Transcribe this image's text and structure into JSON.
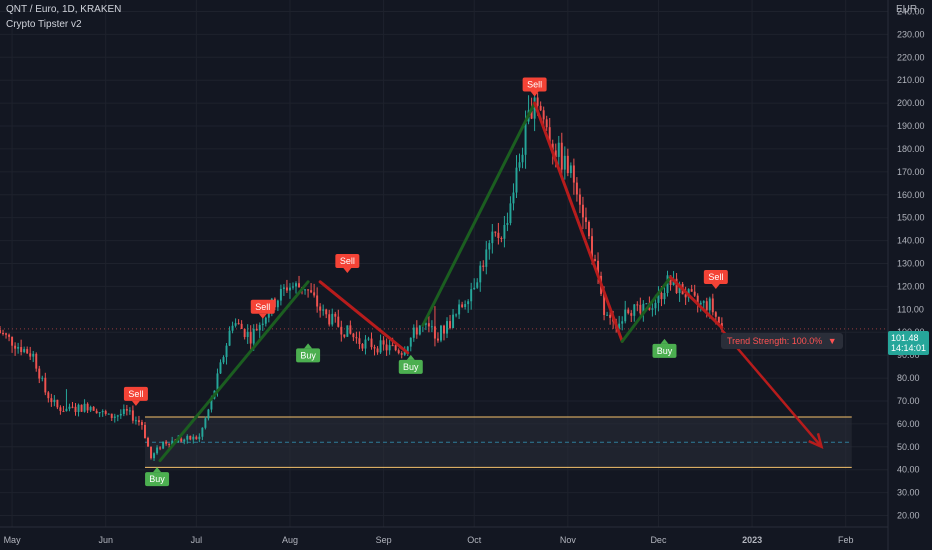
{
  "header": {
    "symbol": "QNT / Euro, 1D, KRAKEN",
    "indicator": "Crypto Tipster v2"
  },
  "price_scale": {
    "currency": "EUR",
    "last_price": "101.48",
    "countdown": "14:14:01"
  },
  "trend_strength": {
    "label": "Trend Strength: 100.0%",
    "arrow": "▼"
  },
  "colors": {
    "background": "#131722",
    "grid": "#1e222d",
    "text": "#b2b5be",
    "up": "#26a69a",
    "down": "#ef5350",
    "buy": "#4caf50",
    "sell": "#f44336",
    "trend_up": "#1b5e20",
    "trend_down": "#b71c1c",
    "zone_border": "#f5c26b",
    "zone_mid": "#2e7d9a"
  },
  "chart_data": {
    "type": "candlestick",
    "x_ticks": [
      "May",
      "Jun",
      "Jul",
      "Aug",
      "Sep",
      "Oct",
      "Nov",
      "Dec",
      "2023",
      "Feb"
    ],
    "y_ticks": [
      "20.00",
      "30.00",
      "40.00",
      "50.00",
      "60.00",
      "70.00",
      "80.00",
      "90.00",
      "100.00",
      "110.00",
      "120.00",
      "130.00",
      "140.00",
      "150.00",
      "160.00",
      "170.00",
      "180.00",
      "190.00",
      "200.00",
      "210.00",
      "220.00",
      "230.00",
      "240.00"
    ],
    "ylim": [
      15,
      245
    ],
    "xlim": [
      "2022-04-27",
      "2023-02-15"
    ],
    "close_path": [
      [
        "2022-04-26",
        101
      ],
      [
        "2022-05-03",
        94
      ],
      [
        "2022-05-08",
        90
      ],
      [
        "2022-05-12",
        74
      ],
      [
        "2022-05-16",
        67
      ],
      [
        "2022-05-20",
        66
      ],
      [
        "2022-05-27",
        68
      ],
      [
        "2022-06-02",
        63
      ],
      [
        "2022-06-08",
        65
      ],
      [
        "2022-06-13",
        60
      ],
      [
        "2022-06-16",
        45
      ],
      [
        "2022-06-20",
        52
      ],
      [
        "2022-06-26",
        53
      ],
      [
        "2022-07-02",
        54
      ],
      [
        "2022-07-06",
        70
      ],
      [
        "2022-07-13",
        105
      ],
      [
        "2022-07-19",
        98
      ],
      [
        "2022-07-25",
        110
      ],
      [
        "2022-07-31",
        120
      ],
      [
        "2022-08-06",
        120
      ],
      [
        "2022-08-12",
        108
      ],
      [
        "2022-08-18",
        102
      ],
      [
        "2022-08-24",
        96
      ],
      [
        "2022-08-30",
        94
      ],
      [
        "2022-09-07",
        92
      ],
      [
        "2022-09-13",
        103
      ],
      [
        "2022-09-19",
        99
      ],
      [
        "2022-09-25",
        107
      ],
      [
        "2022-10-01",
        122
      ],
      [
        "2022-10-07",
        140
      ],
      [
        "2022-10-11",
        145
      ],
      [
        "2022-10-16",
        175
      ],
      [
        "2022-10-21",
        205
      ],
      [
        "2022-10-26",
        185
      ],
      [
        "2022-10-30",
        175
      ],
      [
        "2022-11-04",
        165
      ],
      [
        "2022-11-09",
        135
      ],
      [
        "2022-11-13",
        108
      ],
      [
        "2022-11-17",
        100
      ],
      [
        "2022-11-20",
        112
      ],
      [
        "2022-11-25",
        108
      ],
      [
        "2022-12-01",
        115
      ],
      [
        "2022-12-04",
        122
      ],
      [
        "2022-12-09",
        118
      ],
      [
        "2022-12-14",
        112
      ],
      [
        "2022-12-18",
        112
      ],
      [
        "2022-12-22",
        101.48
      ]
    ],
    "signals": [
      {
        "type": "Sell",
        "date": "2022-06-11",
        "price": 67
      },
      {
        "type": "Buy",
        "date": "2022-06-18",
        "price": 42
      },
      {
        "type": "Sell",
        "date": "2022-07-23",
        "price": 105
      },
      {
        "type": "Buy",
        "date": "2022-08-07",
        "price": 96
      },
      {
        "type": "Sell",
        "date": "2022-08-20",
        "price": 125
      },
      {
        "type": "Buy",
        "date": "2022-09-10",
        "price": 91
      },
      {
        "type": "Sell",
        "date": "2022-10-21",
        "price": 202
      },
      {
        "type": "Buy",
        "date": "2022-12-03",
        "price": 98
      },
      {
        "type": "Sell",
        "date": "2022-12-20",
        "price": 118
      }
    ],
    "trend_lines": [
      {
        "dir": "up",
        "points": [
          [
            "2022-06-19",
            44
          ],
          [
            "2022-08-07",
            122
          ]
        ]
      },
      {
        "dir": "down",
        "points": [
          [
            "2022-08-11",
            122
          ],
          [
            "2022-09-09",
            91
          ]
        ]
      },
      {
        "dir": "up",
        "points": [
          [
            "2022-09-14",
            103
          ],
          [
            "2022-10-21",
            200
          ]
        ]
      },
      {
        "dir": "down",
        "points": [
          [
            "2022-10-21",
            200
          ],
          [
            "2022-11-19",
            96
          ]
        ]
      },
      {
        "dir": "up",
        "points": [
          [
            "2022-11-19",
            96
          ],
          [
            "2022-12-05",
            124
          ]
        ]
      },
      {
        "dir": "down",
        "points": [
          [
            "2022-12-05",
            124
          ],
          [
            "2022-12-22",
            102
          ]
        ]
      }
    ],
    "projection": {
      "from": [
        "2022-12-22",
        101
      ],
      "to": [
        "2023-01-24",
        50
      ]
    },
    "zone": {
      "top": 63,
      "bottom": 41,
      "mid": 52,
      "start": "2022-06-14",
      "end": "2023-02-03"
    }
  }
}
